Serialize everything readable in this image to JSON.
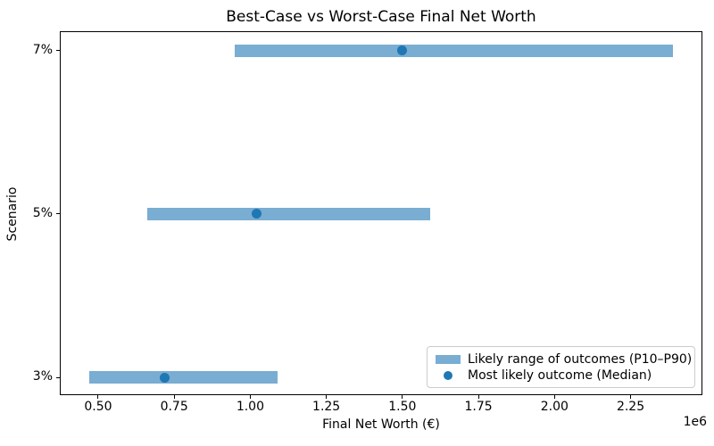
{
  "chart_data": {
    "type": "bar",
    "title": "Best-Case vs Worst-Case Final Net Worth",
    "xlabel": "Final Net Worth (€)",
    "ylabel": "Scenario",
    "x_offset_label": "1e6",
    "xlim": [
      374000,
      2486000
    ],
    "x_ticks": [
      500000,
      750000,
      1000000,
      1250000,
      1500000,
      1750000,
      2000000,
      2250000
    ],
    "x_tick_labels": [
      "0.50",
      "0.75",
      "1.00",
      "1.25",
      "1.50",
      "1.75",
      "2.00",
      "2.25"
    ],
    "categories": [
      "7%",
      "5%",
      "3%"
    ],
    "rows": [
      {
        "label": "7%",
        "p10": 950000,
        "median": 1500000,
        "p90": 2390000
      },
      {
        "label": "5%",
        "p10": 660000,
        "median": 1020000,
        "p90": 1590000
      },
      {
        "label": "3%",
        "p10": 470000,
        "median": 720000,
        "p90": 1090000
      }
    ],
    "series": [
      {
        "name": "Likely range of outcomes (P10–P90)",
        "type": "range"
      },
      {
        "name": "Most likely outcome (Median)",
        "type": "point"
      }
    ],
    "legend": [
      {
        "swatch": "bar",
        "label": "Likely range of outcomes (P10–P90)"
      },
      {
        "swatch": "dot",
        "label": "Most likely outcome (Median)"
      }
    ],
    "colors": {
      "range_bar": "#79add2",
      "median_dot": "#1f77b4",
      "axis": "#000000",
      "legend_border": "#cccccc",
      "background": "#ffffff"
    },
    "grid": "off",
    "legend_position": "lower right"
  }
}
